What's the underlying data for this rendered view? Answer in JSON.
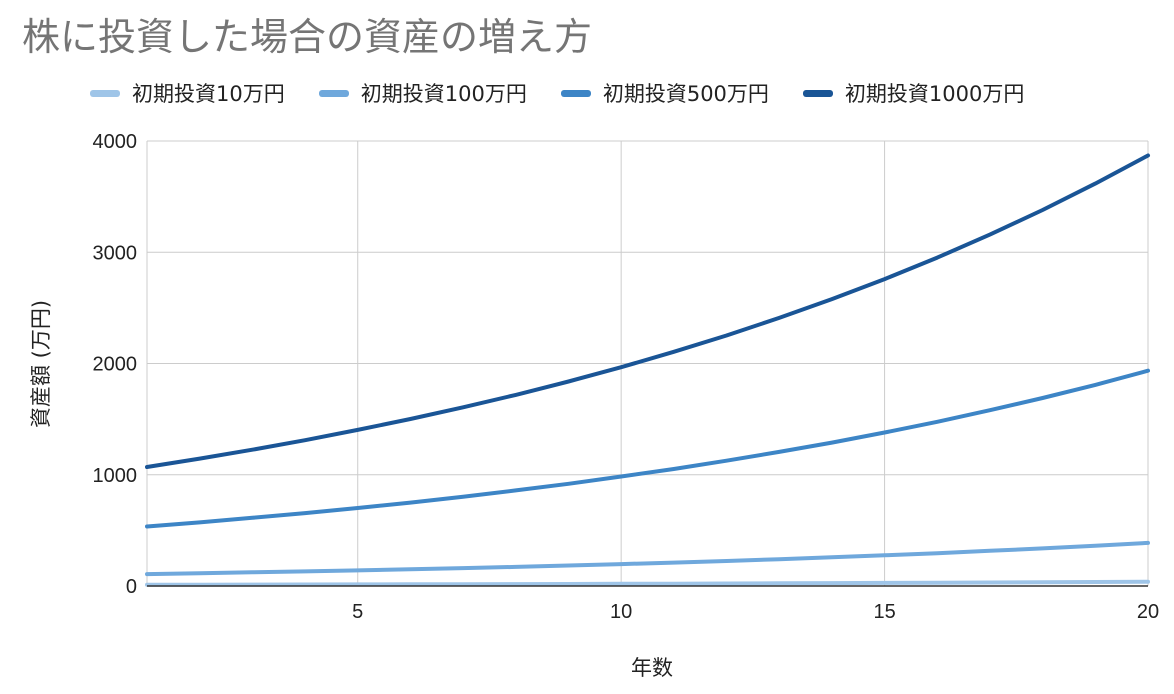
{
  "chart_data": {
    "type": "line",
    "title": "株に投資した場合の資産の増え方",
    "xlabel": "年数",
    "ylabel": "資産額 (万円)",
    "x": [
      1,
      2,
      3,
      4,
      5,
      6,
      7,
      8,
      9,
      10,
      11,
      12,
      13,
      14,
      15,
      16,
      17,
      18,
      19,
      20
    ],
    "xlim": [
      1,
      20
    ],
    "xticks": [
      5,
      10,
      15,
      20
    ],
    "ylim": [
      0,
      4000
    ],
    "yticks": [
      0,
      1000,
      2000,
      3000,
      4000
    ],
    "grid": true,
    "legend_position": "top",
    "series": [
      {
        "name": "初期投資10万円",
        "color": "#9fc5e8",
        "values": [
          10.7,
          11.4,
          12.3,
          13.1,
          14.0,
          15.0,
          16.1,
          17.2,
          18.4,
          19.7,
          21.0,
          22.5,
          24.1,
          25.8,
          27.6,
          29.5,
          31.6,
          33.8,
          36.2,
          38.7
        ]
      },
      {
        "name": "初期投資100万円",
        "color": "#6fa8dc",
        "values": [
          107,
          114,
          123,
          131,
          140,
          150,
          161,
          172,
          184,
          197,
          210,
          225,
          241,
          258,
          276,
          295,
          316,
          338,
          362,
          387
        ]
      },
      {
        "name": "初期投資500万円",
        "color": "#3d85c6",
        "values": [
          535,
          572,
          613,
          655,
          701,
          750,
          803,
          859,
          919,
          984,
          1052,
          1126,
          1205,
          1289,
          1380,
          1476,
          1580,
          1690,
          1808,
          1935
        ]
      },
      {
        "name": "初期投資1000万円",
        "color": "#1a5596",
        "values": [
          1070,
          1145,
          1225,
          1311,
          1403,
          1501,
          1606,
          1718,
          1838,
          1967,
          2105,
          2252,
          2410,
          2579,
          2759,
          2952,
          3159,
          3380,
          3617,
          3870
        ]
      }
    ]
  }
}
